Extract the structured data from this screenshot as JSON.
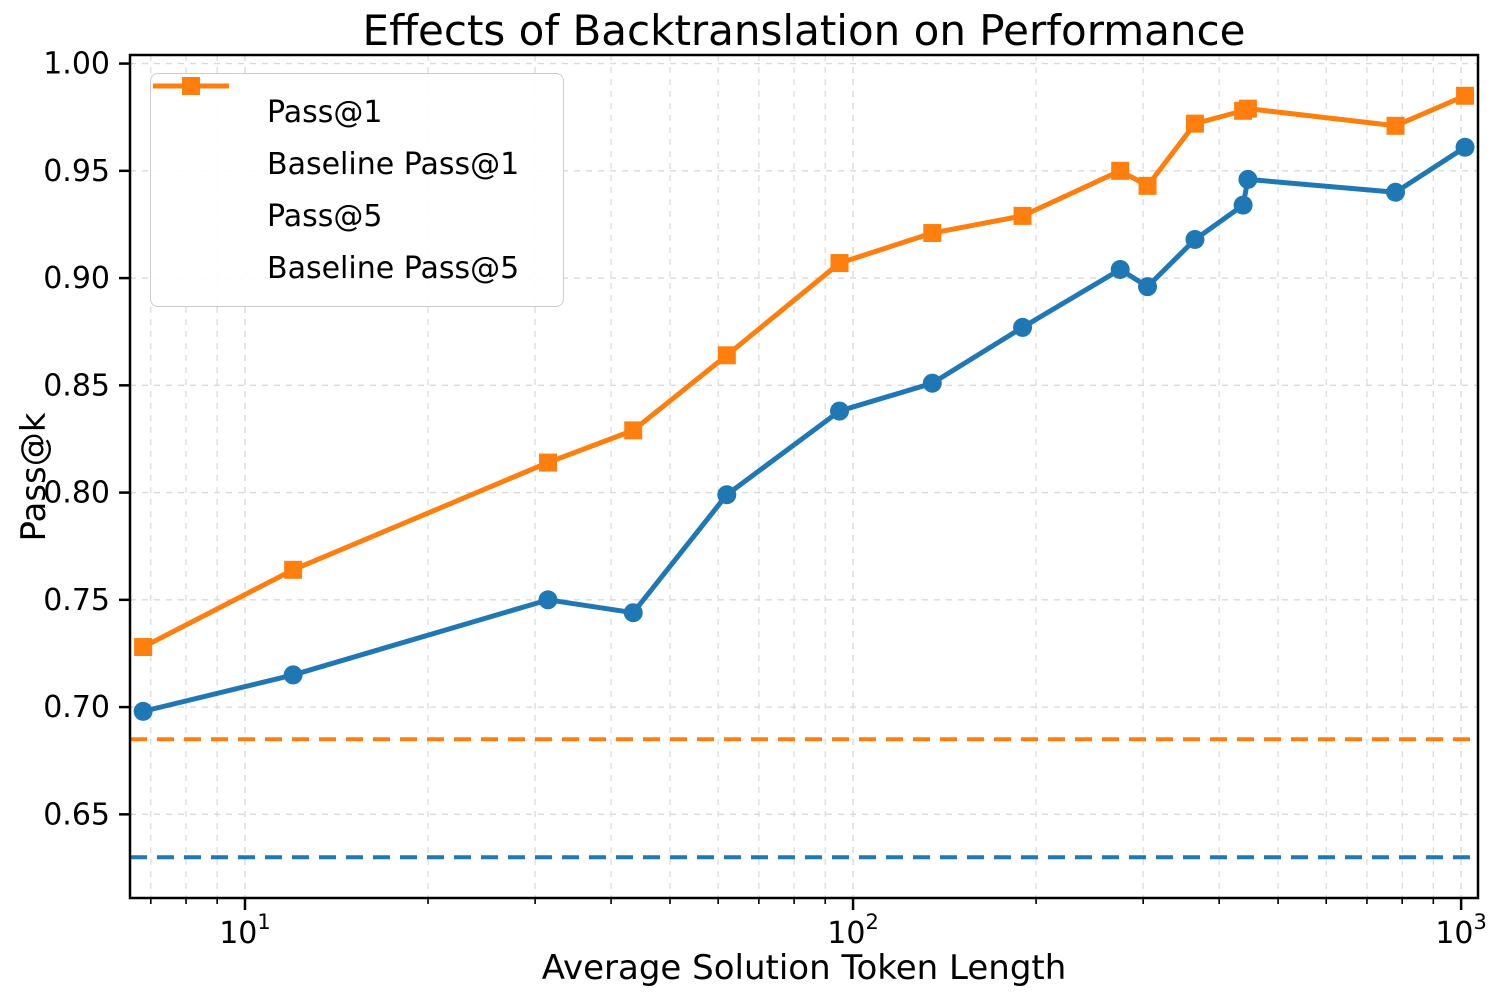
{
  "figure": {
    "title": "Effects of Backtranslation on Performance",
    "xlabel": "Average Solution Token Length",
    "ylabel": "Pass@k"
  },
  "colors": {
    "pass1": "#1f77b4",
    "pass5": "#ff7f0e",
    "grid": "#d9d9d9",
    "spine": "#000000",
    "legend_border": "#cccccc"
  },
  "legend": {
    "items": [
      {
        "label": "Pass@1",
        "color": "#1f77b4",
        "dashed": false,
        "marker": "circle"
      },
      {
        "label": "Baseline Pass@1",
        "color": "#1f77b4",
        "dashed": true,
        "marker": "none"
      },
      {
        "label": "Pass@5",
        "color": "#ff7f0e",
        "dashed": false,
        "marker": "square"
      },
      {
        "label": "Baseline Pass@5",
        "color": "#ff7f0e",
        "dashed": true,
        "marker": "none"
      }
    ]
  },
  "chart_data": {
    "type": "line",
    "title": "Effects of Backtranslation on Performance",
    "xlabel": "Average Solution Token Length",
    "ylabel": "Pass@k",
    "x_scale": "log",
    "grid": true,
    "legend_position": "upper left",
    "xlim": [
      6.47,
      1066
    ],
    "ylim": [
      0.611,
      1.004
    ],
    "y_ticks": [
      0.65,
      0.7,
      0.75,
      0.8,
      0.85,
      0.9,
      0.95,
      1.0
    ],
    "x_major_ticks": [
      {
        "value": 10,
        "base": "10",
        "exp": "1"
      },
      {
        "value": 100,
        "base": "10",
        "exp": "2"
      },
      {
        "value": 1000,
        "base": "10",
        "exp": "3"
      }
    ],
    "x_minor_ticks": [
      7,
      8,
      9,
      20,
      30,
      40,
      50,
      60,
      70,
      80,
      90,
      200,
      300,
      400,
      500,
      600,
      700,
      800,
      900
    ],
    "x": [
      6.8,
      12,
      31.5,
      43.5,
      62,
      95,
      135,
      190,
      275,
      305,
      365,
      438,
      446,
      780,
      1015
    ],
    "series": [
      {
        "name": "Pass@1",
        "kind": "line",
        "color": "#1f77b4",
        "marker": "circle",
        "values": [
          0.698,
          0.715,
          0.75,
          0.744,
          0.799,
          0.838,
          0.851,
          0.877,
          0.904,
          0.896,
          0.918,
          0.934,
          0.946,
          0.94,
          0.961
        ]
      },
      {
        "name": "Baseline Pass@1",
        "kind": "hline",
        "color": "#1f77b4",
        "dashed": true,
        "value": 0.63
      },
      {
        "name": "Pass@5",
        "kind": "line",
        "color": "#ff7f0e",
        "marker": "square",
        "values": [
          0.728,
          0.764,
          0.814,
          0.829,
          0.864,
          0.907,
          0.921,
          0.929,
          0.95,
          0.943,
          0.972,
          0.978,
          0.979,
          0.971,
          0.985
        ]
      },
      {
        "name": "Baseline Pass@5",
        "kind": "hline",
        "color": "#ff7f0e",
        "dashed": true,
        "value": 0.685
      }
    ]
  }
}
